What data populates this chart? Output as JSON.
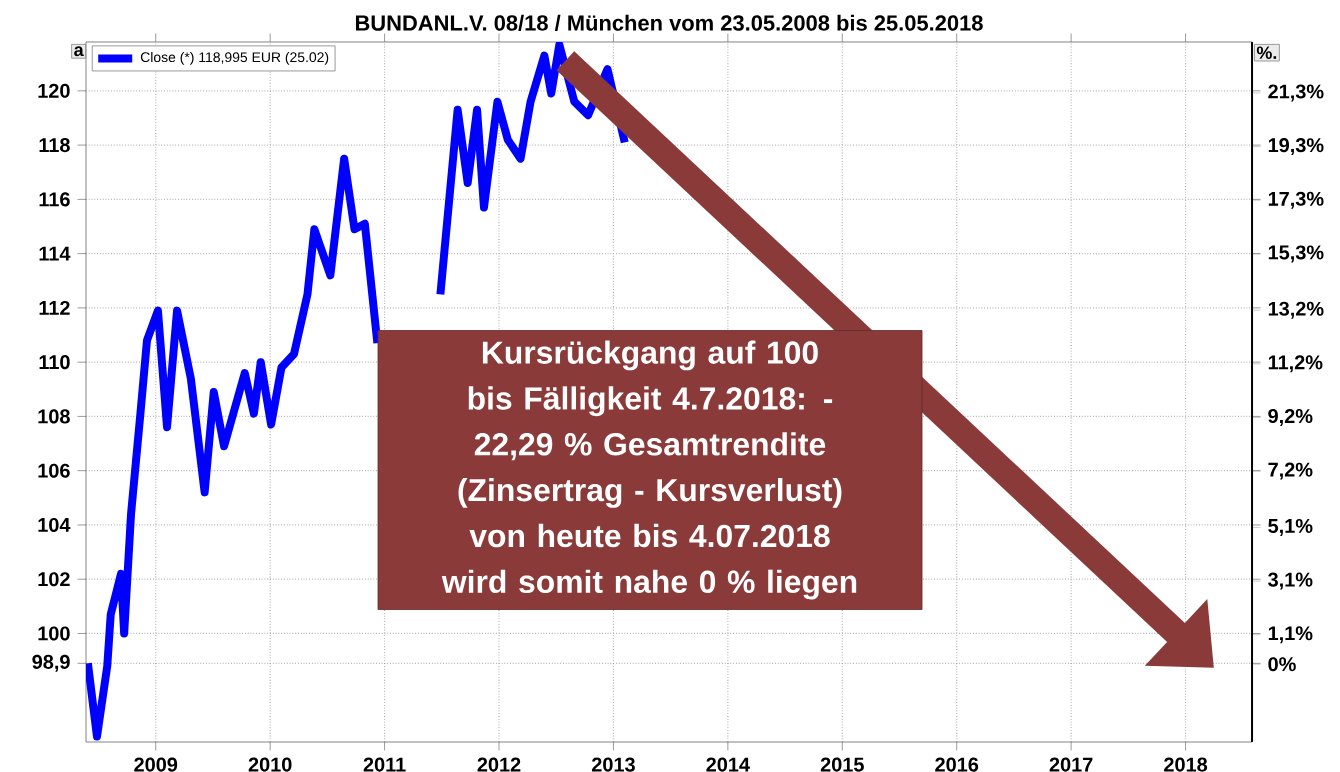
{
  "chart_data": {
    "type": "line",
    "title": "BUNDANL.V. 08/18 / München vom 23.05.2008 bis 25.05.2018",
    "ylabel": "a",
    "y2label": "%.",
    "x": [
      "2008-05-29",
      "2008-06-27",
      "2008-07-30",
      "2008-08-10",
      "2008-09-12",
      "2008-09-22",
      "2008-10-14",
      "2008-11-13",
      "2008-12-04",
      "2009-01-08",
      "2009-02-06",
      "2009-03-10",
      "2009-04-23",
      "2009-06-06",
      "2009-07-05",
      "2009-08-07",
      "2009-10-12",
      "2009-11-10",
      "2009-12-02",
      "2010-01-04",
      "2010-02-06",
      "2010-03-18",
      "2010-04-30",
      "2010-05-22",
      "2010-07-12",
      "2010-08-25",
      "2010-09-27",
      "2010-10-30",
      "2010-12-09",
      "2011-03-15",
      "2011-06-28",
      "2011-08-22",
      "2011-09-23",
      "2011-10-23",
      "2011-11-14",
      "2011-12-27",
      "2012-01-29",
      "2012-03-10",
      "2012-04-11",
      "2012-05-25",
      "2012-06-16",
      "2012-07-12",
      "2012-08-29",
      "2012-10-12",
      "2012-12-13",
      "2013-02-06"
    ],
    "series": [
      {
        "name": "Close (*) 118,995 EUR (25.02)",
        "color": "#0000ff",
        "values": [
          98.9,
          96.2,
          98.8,
          100.7,
          102.2,
          100.0,
          104.4,
          108.1,
          110.8,
          111.9,
          107.6,
          111.9,
          109.4,
          105.2,
          108.9,
          106.9,
          109.6,
          108.1,
          110.0,
          107.7,
          109.8,
          110.3,
          112.5,
          114.9,
          113.2,
          117.5,
          114.9,
          115.1,
          110.7,
          null,
          112.5,
          119.3,
          116.6,
          119.3,
          115.7,
          119.6,
          118.2,
          117.5,
          119.6,
          121.3,
          119.9,
          121.7,
          119.6,
          119.1,
          120.8,
          118.1
        ]
      }
    ],
    "xlim": [
      "2008-05-23",
      "2018-08-01"
    ],
    "ylim": [
      96,
      121.8
    ],
    "xticks": [
      "2009",
      "2010",
      "2011",
      "2012",
      "2013",
      "2014",
      "2015",
      "2016",
      "2017",
      "2018"
    ],
    "yticks": [
      {
        "value": 98.9,
        "label": "98,9"
      },
      100,
      102,
      104,
      106,
      108,
      110,
      112,
      114,
      116,
      118,
      120
    ],
    "y2lim": [
      -2.9,
      23.2
    ],
    "y2ticks": [
      {
        "value": 0,
        "label": "0%"
      },
      {
        "value": 1.1,
        "label": "1,1%"
      },
      {
        "value": 3.1,
        "label": "3,1%"
      },
      {
        "value": 5.1,
        "label": "5,1%"
      },
      {
        "value": 7.2,
        "label": "7,2%"
      },
      {
        "value": 9.2,
        "label": "9,2%"
      },
      {
        "value": 11.2,
        "label": "11,2%"
      },
      {
        "value": 13.2,
        "label": "13,2%"
      },
      {
        "value": 15.3,
        "label": "15,3%"
      },
      {
        "value": 17.3,
        "label": "17,3%"
      },
      {
        "value": 19.3,
        "label": "19,3%"
      },
      {
        "value": 21.3,
        "label": "21,3%"
      }
    ],
    "grid": true,
    "legend": "top left",
    "annotations": [
      "Kursrückgang auf 100 bis Fälligkeit 4.7.2018: - 22,29 % Gesamtrendite (Zinsertrag - Kursverlust) von heute bis 4.07.2018 wird somit nahe 0 % liegen"
    ]
  }
}
